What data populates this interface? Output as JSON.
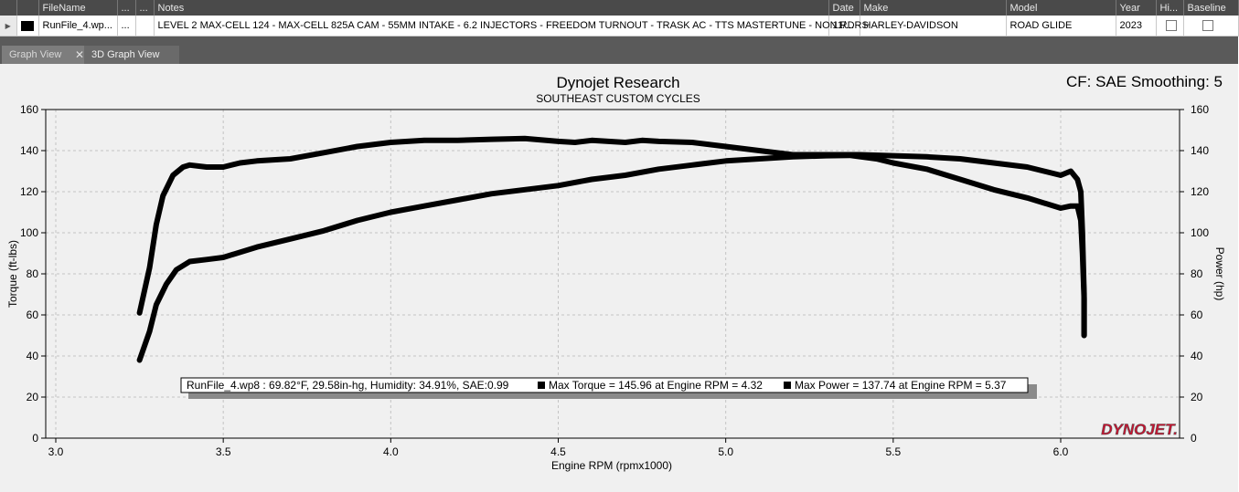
{
  "grid": {
    "headers": [
      "FileName",
      "...",
      "...",
      "Notes",
      "Date",
      "Make",
      "Model",
      "Year",
      "Hi...",
      "Baseline"
    ],
    "row": {
      "filename": "RunFile_4.wp...",
      "col2": "...",
      "col3": "",
      "notes": "LEVEL 2 MAX-CELL 124 - MAX-CELL 825A CAM - 55MM INTAKE - 6.2 INJECTORS - FREEDOM TURNOUT - TRASK AC - TTS MASTERTUNE - NON RDRS",
      "date": "11/...",
      "make": "HARLEY-DAVIDSON",
      "model": "ROAD GLIDE",
      "year": "2023"
    }
  },
  "tabs": {
    "graph_view": "Graph View",
    "graph_3d": "3D Graph View",
    "close": "✕"
  },
  "chart_data": {
    "type": "line",
    "title": "Dynojet Research",
    "subtitle": "SOUTHEAST CUSTOM CYCLES",
    "corner_label": "CF: SAE Smoothing: 5",
    "xlabel": "Engine RPM (rpmx1000)",
    "ylabel_left": "Torque (ft-lbs)",
    "ylabel_right": "Power (hp)",
    "xlim": [
      3.0,
      6.2
    ],
    "ylim": [
      0,
      160
    ],
    "x_ticks": [
      "3.0",
      "3.5",
      "4.0",
      "4.5",
      "5.0",
      "5.5",
      "6.0"
    ],
    "y_ticks": [
      "0",
      "20",
      "40",
      "60",
      "80",
      "100",
      "120",
      "140",
      "160"
    ],
    "grid": true,
    "series_color": "#000000",
    "series": [
      {
        "x": [
          3.25,
          3.28,
          3.3,
          3.32,
          3.35,
          3.38,
          3.4,
          3.45,
          3.5,
          3.55,
          3.6,
          3.7,
          3.8,
          3.9,
          4.0,
          4.1,
          4.2,
          4.3,
          4.4,
          4.5,
          4.55,
          4.6,
          4.7,
          4.75,
          4.8,
          4.9,
          5.0,
          5.1,
          5.2,
          5.3,
          5.4,
          5.5,
          5.6,
          5.7,
          5.8,
          5.9,
          5.95,
          6.0,
          6.03,
          6.05,
          6.06,
          6.065,
          6.07,
          6.07
        ],
        "y": [
          61,
          83,
          104,
          118,
          128,
          132,
          133,
          132,
          132,
          134,
          135,
          136,
          139,
          142,
          144,
          145,
          145,
          145.5,
          145.9,
          144.5,
          144,
          145,
          144,
          145,
          144.5,
          144,
          142,
          140,
          138,
          138,
          138,
          137.5,
          137,
          136,
          134,
          132,
          130,
          128,
          130,
          126,
          120,
          100,
          70,
          50
        ]
      },
      {
        "x": [
          3.25,
          3.28,
          3.3,
          3.33,
          3.36,
          3.4,
          3.45,
          3.5,
          3.6,
          3.7,
          3.8,
          3.9,
          4.0,
          4.1,
          4.2,
          4.3,
          4.4,
          4.5,
          4.6,
          4.7,
          4.8,
          4.9,
          5.0,
          5.1,
          5.2,
          5.3,
          5.37,
          5.45,
          5.5,
          5.6,
          5.7,
          5.8,
          5.9,
          6.0,
          6.03,
          6.05,
          6.06,
          6.065,
          6.07,
          6.07
        ],
        "y": [
          38,
          52,
          65,
          75,
          82,
          86,
          87,
          88,
          93,
          97,
          101,
          106,
          110,
          113,
          116,
          119,
          121,
          123,
          126,
          128,
          131,
          133,
          135,
          136,
          137,
          137.5,
          137.7,
          136,
          134,
          131,
          126,
          121,
          117,
          112,
          113,
          113,
          106,
          90,
          68,
          50
        ]
      }
    ],
    "legend": {
      "run_info": "RunFile_4.wp8 : 69.82°F, 29.58in-hg, Humidity: 34.91%, SAE:0.99",
      "max_torque": "Max Torque = 145.96 at Engine RPM = 4.32",
      "max_power": "Max Power = 137.74 at Engine RPM = 5.37",
      "placement": "bottom-center"
    },
    "logo_text": "DYNOJET."
  }
}
